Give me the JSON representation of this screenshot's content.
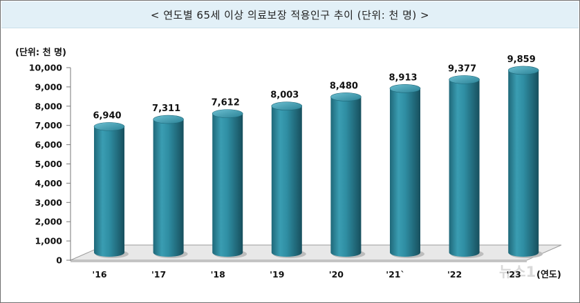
{
  "chart_data": {
    "type": "bar",
    "title": "< 연도별 65세 이상 의료보장 적용인구 추이 (단위: 천 명) >",
    "ylabel": "(단위: 천 명)",
    "xlabel": "(연도)",
    "categories": [
      "'16",
      "'17",
      "'18",
      "'19",
      "'20",
      "'21`",
      "'22",
      "'23"
    ],
    "values": [
      6940,
      7311,
      7612,
      8003,
      8480,
      8913,
      9377,
      9859
    ],
    "value_labels": [
      "6,940",
      "7,311",
      "7,612",
      "8,003",
      "8,480",
      "8,913",
      "9,377",
      "9,859"
    ],
    "y_ticks": [
      "0",
      "1,000",
      "2,000",
      "3,000",
      "4,000",
      "5,000",
      "6,000",
      "7,000",
      "8,000",
      "9,000",
      "10,000"
    ],
    "ylim": [
      0,
      10000
    ],
    "grid": false,
    "legend": "none",
    "colors": {
      "bar": "#2f8ea3",
      "bar_dark": "#1b5f70",
      "bar_light": "#5fb3c6",
      "floor": "#e6e6e6"
    }
  },
  "watermark": "뉴스1"
}
